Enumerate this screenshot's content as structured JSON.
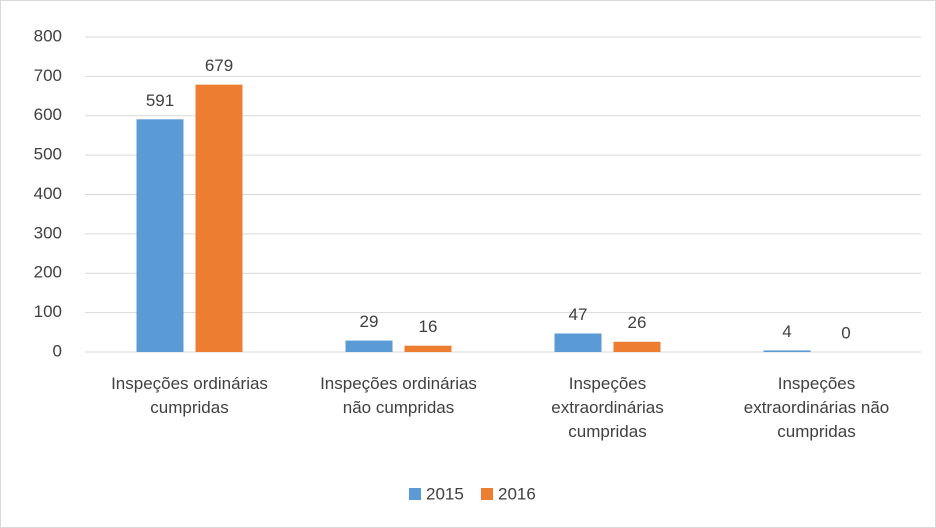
{
  "chart_data": {
    "type": "bar",
    "categories": [
      "Inspeções ordinárias\ncumpridas",
      "Inspeções ordinárias\nnão cumpridas",
      "Inspeções\nextraordinárias\ncumpridas",
      "Inspeções\nextraordinárias não\ncumpridas"
    ],
    "series": [
      {
        "name": "2015",
        "color": "#5b9bd5",
        "values": [
          591,
          29,
          47,
          4
        ]
      },
      {
        "name": "2016",
        "color": "#ed7d31",
        "values": [
          679,
          16,
          26,
          0
        ]
      }
    ],
    "ylim": [
      0,
      800
    ],
    "yticks": [
      0,
      100,
      200,
      300,
      400,
      500,
      600,
      700,
      800
    ],
    "grid": true,
    "legend": "bottom"
  }
}
